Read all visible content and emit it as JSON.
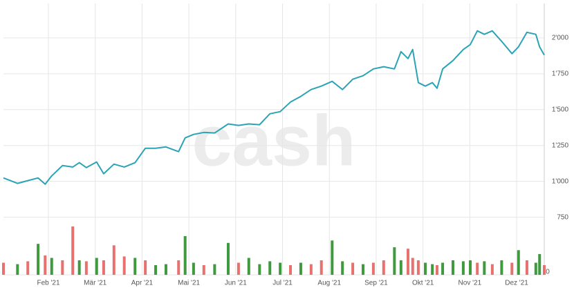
{
  "chart_data": {
    "type": "line",
    "watermark": "cash",
    "grid": true,
    "x": [
      1.04,
      1.34,
      1.56,
      1.78,
      1.93,
      2.07,
      2.3,
      2.52,
      2.66,
      2.81,
      3.03,
      3.18,
      3.4,
      3.62,
      3.85,
      4.07,
      4.29,
      4.51,
      4.78,
      4.92,
      5.1,
      5.32,
      5.55,
      5.84,
      6.06,
      6.28,
      6.51,
      6.73,
      6.95,
      7.17,
      7.39,
      7.61,
      7.83,
      8.06,
      8.28,
      8.5,
      8.72,
      8.94,
      9.16,
      9.39,
      9.53,
      9.68,
      9.78,
      9.9,
      10.05,
      10.2,
      10.3,
      10.42,
      10.64,
      10.86,
      11.01,
      11.16,
      11.31,
      11.48,
      11.68,
      11.9,
      12.04,
      12.22,
      12.41,
      12.49,
      12.59
    ],
    "xlim": [
      1.04,
      12.59
    ],
    "xticks": [
      {
        "value": 2,
        "label": "Feb '21"
      },
      {
        "value": 3,
        "label": "Mär '21"
      },
      {
        "value": 4,
        "label": "Apr '21"
      },
      {
        "value": 5,
        "label": "Mai '21"
      },
      {
        "value": 6,
        "label": "Jun '21"
      },
      {
        "value": 7,
        "label": "Jul '21"
      },
      {
        "value": 8,
        "label": "Aug '21"
      },
      {
        "value": 9,
        "label": "Sep '21"
      },
      {
        "value": 10,
        "label": "Okt '21"
      },
      {
        "value": 11,
        "label": "Nov '21"
      },
      {
        "value": 12,
        "label": "Dez '21"
      }
    ],
    "ylim": [
      700,
      2240
    ],
    "yticks": [
      750,
      {
        "value": 1000,
        "label": "1'000"
      },
      {
        "value": 1250,
        "label": "1'250"
      },
      {
        "value": 1500,
        "label": "1'500"
      },
      {
        "value": 1750,
        "label": "1'750"
      },
      {
        "value": 2000,
        "label": "2'000"
      }
    ],
    "y2lim": [
      0,
      100
    ],
    "y2ticks": [
      0
    ],
    "series": [
      {
        "color": "#2aa3b5",
        "values": [
          1024,
          986,
          1005,
          1024,
          980,
          1038,
          1110,
          1100,
          1130,
          1096,
          1135,
          1053,
          1120,
          1100,
          1130,
          1231,
          1231,
          1240,
          1207,
          1303,
          1327,
          1341,
          1337,
          1400,
          1390,
          1400,
          1395,
          1471,
          1486,
          1553,
          1592,
          1640,
          1664,
          1697,
          1640,
          1712,
          1736,
          1784,
          1799,
          1784,
          1904,
          1856,
          1919,
          1688,
          1664,
          1688,
          1649,
          1784,
          1842,
          1919,
          1953,
          2049,
          2025,
          2049,
          1976,
          1890,
          1938,
          2039,
          2025,
          1938,
          1880
        ]
      },
      {
        "type": "bar",
        "axis": "y2",
        "values": [
          25,
          22,
          28,
          64,
          40,
          35,
          30,
          100,
          30,
          28,
          35,
          30,
          61,
          38,
          35,
          30,
          20,
          22,
          30,
          80,
          25,
          20,
          22,
          66,
          25,
          35,
          22,
          28,
          25,
          20,
          25,
          22,
          30,
          71,
          28,
          25,
          22,
          25,
          30,
          57,
          30,
          54,
          35,
          30,
          25,
          22,
          20,
          25,
          30,
          28,
          30,
          25,
          28,
          22,
          30,
          25,
          51,
          30,
          25,
          43,
          20
        ],
        "colors": [
          "#e8706d",
          "#3f9a3f",
          "#e8706d",
          "#3f9a3f",
          "#e8706d",
          "#3f9a3f",
          "#e8706d",
          "#e8706d",
          "#3f9a3f",
          "#e8706d",
          "#3f9a3f",
          "#e8706d",
          "#e8706d",
          "#e8706d",
          "#3f9a3f",
          "#e8706d",
          "#3f9a3f",
          "#3f9a3f",
          "#e8706d",
          "#3f9a3f",
          "#3f9a3f",
          "#e8706d",
          "#3f9a3f",
          "#3f9a3f",
          "#e8706d",
          "#3f9a3f",
          "#3f9a3f",
          "#3f9a3f",
          "#3f9a3f",
          "#e8706d",
          "#3f9a3f",
          "#e8706d",
          "#e8706d",
          "#3f9a3f",
          "#3f9a3f",
          "#e8706d",
          "#3f9a3f",
          "#e8706d",
          "#e8706d",
          "#3f9a3f",
          "#3f9a3f",
          "#e8706d",
          "#e8706d",
          "#e8706d",
          "#3f9a3f",
          "#3f9a3f",
          "#e8706d",
          "#3f9a3f",
          "#3f9a3f",
          "#3f9a3f",
          "#3f9a3f",
          "#e8706d",
          "#3f9a3f",
          "#e8706d",
          "#3f9a3f",
          "#e8706d",
          "#3f9a3f",
          "#e8706d",
          "#3f9a3f",
          "#3f9a3f",
          "#e8706d"
        ]
      }
    ]
  }
}
